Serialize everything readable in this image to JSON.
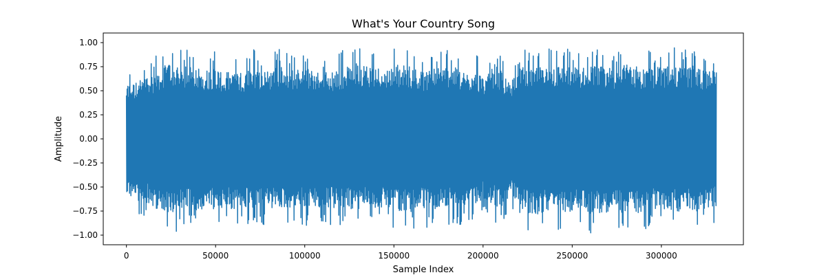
{
  "chart_data": {
    "type": "line",
    "title": "What's Your Country Song",
    "xlabel": "Sample Index",
    "ylabel": "Amplitude",
    "xlim": [
      -13000,
      346000
    ],
    "ylim": [
      -1.1,
      1.1
    ],
    "x_ticks": [
      0,
      50000,
      100000,
      150000,
      200000,
      250000,
      300000
    ],
    "x_tick_labels": [
      "0",
      "50000",
      "100000",
      "150000",
      "200000",
      "250000",
      "300000"
    ],
    "y_ticks": [
      -1.0,
      -0.75,
      -0.5,
      -0.25,
      0.0,
      0.25,
      0.5,
      0.75,
      1.0
    ],
    "y_tick_labels": [
      "−1.00",
      "−0.75",
      "−0.50",
      "−0.25",
      "0.00",
      "0.25",
      "0.50",
      "0.75",
      "1.00"
    ],
    "grid": false,
    "series": [
      {
        "color": "#1f77b4",
        "sample_count": 331000,
        "envelope_x": [
          0,
          5000,
          10000,
          15000,
          20000,
          25000,
          30000,
          35000,
          40000,
          45000,
          50000,
          55000,
          60000,
          65000,
          70000,
          75000,
          80000,
          85000,
          90000,
          95000,
          100000,
          105000,
          110000,
          115000,
          120000,
          125000,
          130000,
          135000,
          140000,
          145000,
          150000,
          155000,
          160000,
          165000,
          170000,
          175000,
          180000,
          185000,
          190000,
          195000,
          200000,
          205000,
          210000,
          215000,
          220000,
          225000,
          230000,
          235000,
          240000,
          245000,
          250000,
          255000,
          260000,
          265000,
          270000,
          275000,
          280000,
          285000,
          290000,
          295000,
          300000,
          305000,
          310000,
          315000,
          320000,
          325000,
          330000
        ],
        "envelope_max": [
          0.72,
          0.73,
          0.8,
          0.85,
          0.93,
          1.0,
          0.92,
          0.95,
          0.95,
          0.9,
          0.94,
          0.85,
          0.9,
          0.85,
          0.96,
          0.88,
          0.9,
          0.95,
          0.92,
          0.9,
          0.93,
          0.88,
          0.95,
          0.86,
          0.92,
          0.94,
          1.0,
          0.96,
          0.95,
          0.9,
          0.97,
          0.96,
          0.94,
          0.88,
          0.91,
          0.93,
          0.95,
          0.92,
          0.85,
          0.9,
          0.83,
          0.85,
          0.88,
          0.72,
          1.0,
          0.93,
          0.92,
          0.95,
          0.96,
          0.95,
          0.94,
          0.92,
          0.96,
          0.94,
          0.95,
          0.93,
          0.96,
          0.96,
          0.92,
          0.92,
          0.94,
          0.95,
          0.96,
          0.93,
          0.96,
          0.88,
          1.0
        ],
        "envelope_min": [
          -0.68,
          -0.86,
          -0.8,
          -0.9,
          -0.92,
          -0.98,
          -0.95,
          -0.9,
          -0.94,
          -0.9,
          -0.92,
          -0.88,
          -0.93,
          -0.92,
          -0.9,
          -0.93,
          -0.9,
          -0.92,
          -0.89,
          -0.9,
          -0.91,
          -0.9,
          -0.92,
          -0.9,
          -0.93,
          -0.9,
          -0.94,
          -0.88,
          -0.92,
          -0.9,
          -0.94,
          -0.93,
          -0.96,
          -0.9,
          -0.93,
          -0.92,
          -0.9,
          -0.93,
          -0.88,
          -0.9,
          -0.76,
          -0.85,
          -0.9,
          -0.74,
          -0.88,
          -0.96,
          -0.98,
          -0.95,
          -0.97,
          -0.95,
          -0.95,
          -0.93,
          -0.99,
          -0.96,
          -0.96,
          -0.96,
          -0.96,
          -0.97,
          -0.96,
          -0.9,
          -0.92,
          -0.93,
          -0.95,
          -0.92,
          -0.96,
          -0.9,
          -0.87
        ]
      }
    ]
  }
}
